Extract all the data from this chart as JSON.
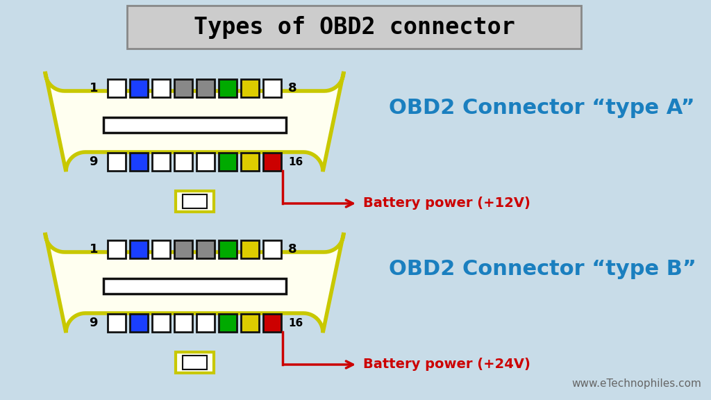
{
  "title": "Types of OBD2 connector",
  "title_fontsize": 24,
  "title_box_color": "#cccccc",
  "bg_color": "#c8dce8",
  "outer_bg": "#b0ccd8",
  "connector_border_color": "#c8c800",
  "connector_fill_color": "#fffff0",
  "pin_border_color": "#111111",
  "type_a_label": "OBD2 Connector “type A”",
  "type_b_label": "OBD2 Connector “type B”",
  "label_color": "#1a7fbf",
  "label_fontsize": 22,
  "battery_a_label": "Battery power (+12V)",
  "battery_b_label": "Battery power (+24V)",
  "battery_color": "#cc0000",
  "battery_fontsize": 14,
  "watermark": "www.eTechnophiles.com",
  "watermark_fontsize": 11,
  "watermark_color": "#666666",
  "top_row_a_colors": [
    "white",
    "#1a3fff",
    "white",
    "#888888",
    "#888888",
    "#00aa00",
    "#ddcc00",
    "white"
  ],
  "bottom_row_a_colors": [
    "white",
    "#1a3fff",
    "white",
    "white",
    "white",
    "#00aa00",
    "#ddcc00",
    "#cc0000"
  ],
  "top_row_b_colors": [
    "white",
    "#1a3fff",
    "white",
    "#888888",
    "#888888",
    "#00aa00",
    "#ddcc00",
    "white"
  ],
  "bottom_row_b_colors": [
    "white",
    "#1a3fff",
    "white",
    "white",
    "white",
    "#00aa00",
    "#ddcc00",
    "#cc0000"
  ]
}
